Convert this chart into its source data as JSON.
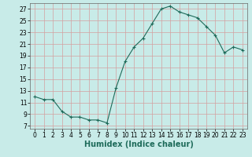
{
  "x": [
    0,
    1,
    2,
    3,
    4,
    5,
    6,
    7,
    8,
    9,
    10,
    11,
    12,
    13,
    14,
    15,
    16,
    17,
    18,
    19,
    20,
    21,
    22,
    23
  ],
  "y": [
    12,
    11.5,
    11.5,
    9.5,
    8.5,
    8.5,
    8.0,
    8.0,
    7.5,
    13.5,
    18.0,
    20.5,
    22.0,
    24.5,
    27.0,
    27.5,
    26.5,
    26.0,
    25.5,
    24.0,
    22.5,
    19.5,
    20.5,
    20.0
  ],
  "xlabel": "Humidex (Indice chaleur)",
  "xlim": [
    -0.5,
    23.5
  ],
  "ylim": [
    6.5,
    28
  ],
  "yticks": [
    7,
    9,
    11,
    13,
    15,
    17,
    19,
    21,
    23,
    25,
    27
  ],
  "xticks": [
    0,
    1,
    2,
    3,
    4,
    5,
    6,
    7,
    8,
    9,
    10,
    11,
    12,
    13,
    14,
    15,
    16,
    17,
    18,
    19,
    20,
    21,
    22,
    23
  ],
  "line_color": "#1E6B5A",
  "marker": "+",
  "bg_color": "#C8EBE8",
  "grid_color": "#B0B0B0",
  "grid_red_color": "#D4A0A0",
  "xlabel_fontsize": 7,
  "tick_fontsize": 5.5,
  "markersize": 3,
  "linewidth": 0.8
}
